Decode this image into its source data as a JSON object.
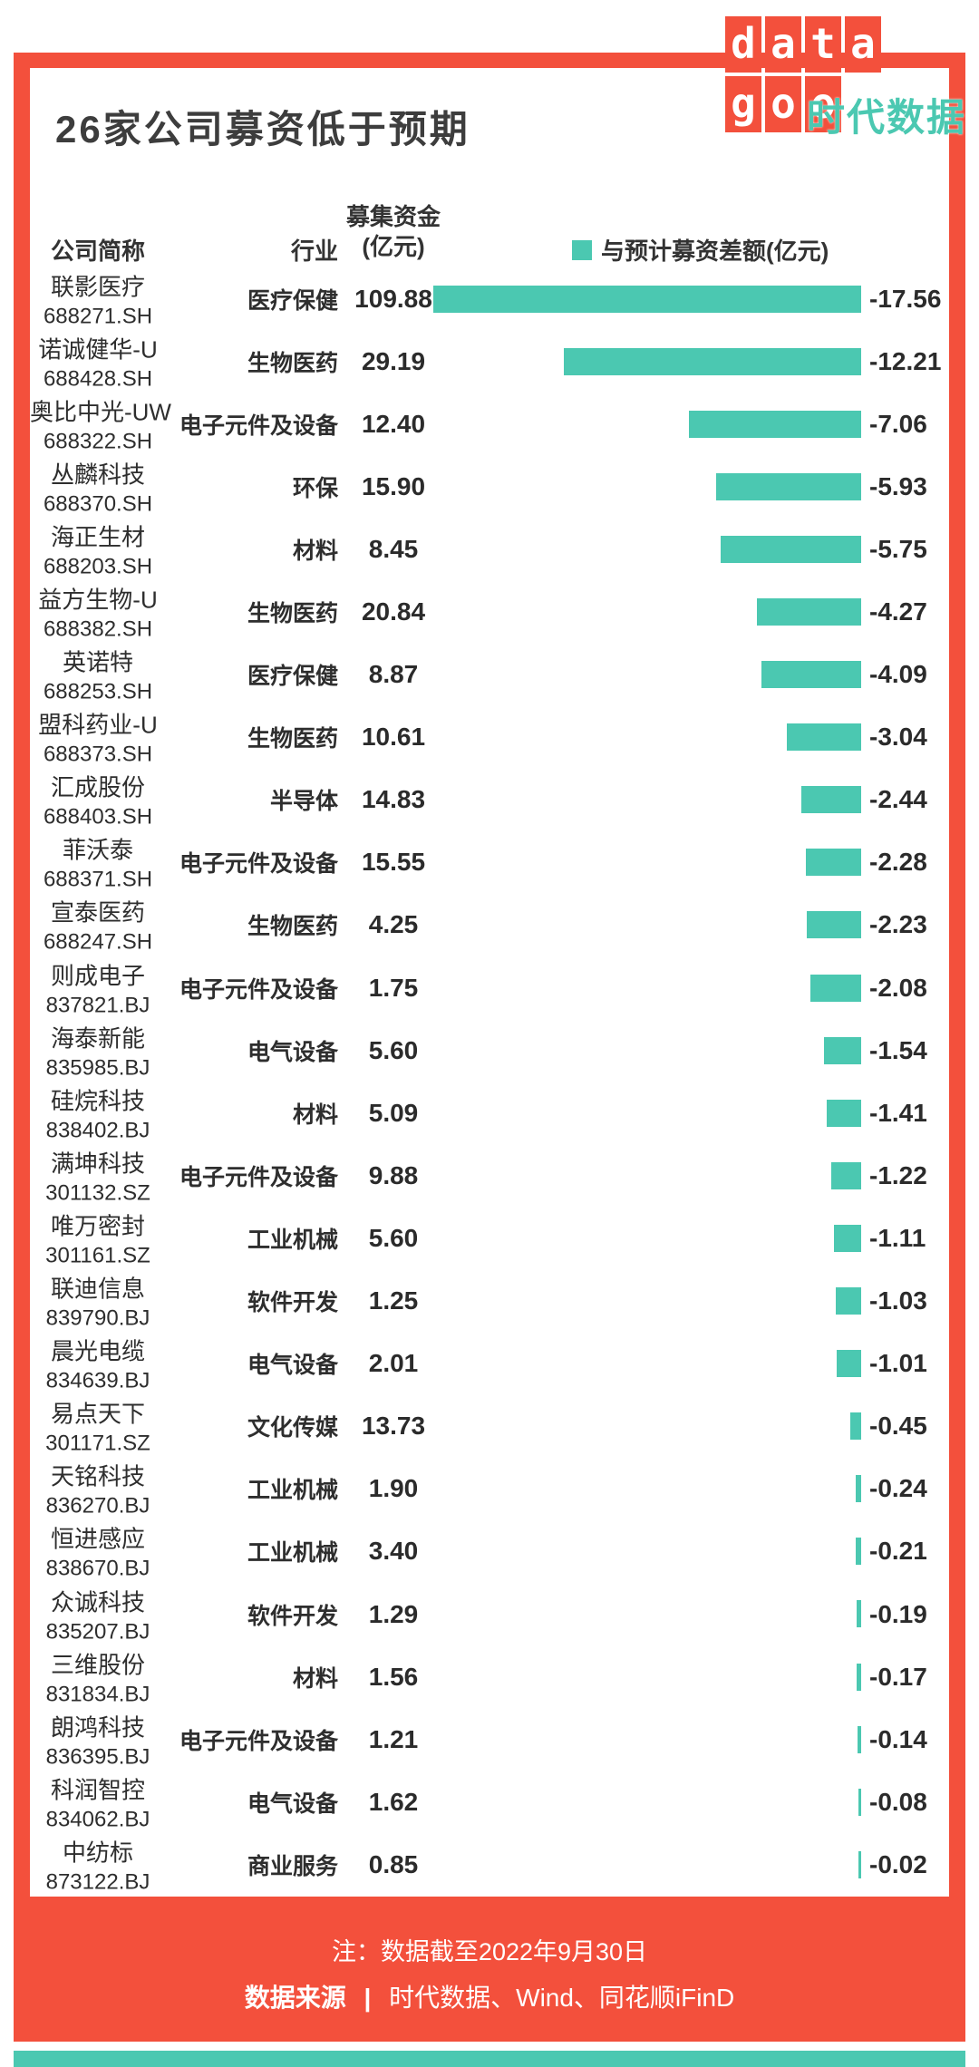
{
  "title": "26家公司募资低于预期",
  "logo": {
    "top": "data",
    "bottom": "goo",
    "brand": "时代数据"
  },
  "table": {
    "col_company": "公司简称",
    "col_industry": "行业",
    "col_funds_line1": "募集资金",
    "col_funds_line2": "(亿元)",
    "legend_label": "与预计募资差额(亿元)"
  },
  "footer": {
    "note_prefix": "注：",
    "note": "数据截至2022年9月30日",
    "source_label": "数据来源",
    "separator": "|",
    "source": "时代数据、Wind、同花顺iFinD"
  },
  "colors": {
    "accent_red": "#F3503C",
    "accent_teal": "#4BC8B1"
  },
  "chart_data": {
    "type": "bar",
    "orientation": "horizontal",
    "title": "26家公司募资低于预期",
    "legend": "与预计募资差额(亿元)",
    "value_unit": "亿元",
    "xlim": [
      -18,
      0
    ],
    "rows": [
      {
        "company": "联影医疗",
        "code": "688271.SH",
        "industry": "医疗保健",
        "funds": "109.88",
        "diff": -17.56,
        "diff_label": "-17.56"
      },
      {
        "company": "诺诚健华-U",
        "code": "688428.SH",
        "industry": "生物医药",
        "funds": "29.19",
        "diff": -12.21,
        "diff_label": "-12.21"
      },
      {
        "company": "奥比中光-UW",
        "code": "688322.SH",
        "industry": "电子元件及设备",
        "funds": "12.40",
        "diff": -7.06,
        "diff_label": "-7.06"
      },
      {
        "company": "丛麟科技",
        "code": "688370.SH",
        "industry": "环保",
        "funds": "15.90",
        "diff": -5.93,
        "diff_label": "-5.93"
      },
      {
        "company": "海正生材",
        "code": "688203.SH",
        "industry": "材料",
        "funds": "8.45",
        "diff": -5.75,
        "diff_label": "-5.75"
      },
      {
        "company": "益方生物-U",
        "code": "688382.SH",
        "industry": "生物医药",
        "funds": "20.84",
        "diff": -4.27,
        "diff_label": "-4.27"
      },
      {
        "company": "英诺特",
        "code": "688253.SH",
        "industry": "医疗保健",
        "funds": "8.87",
        "diff": -4.09,
        "diff_label": "-4.09"
      },
      {
        "company": "盟科药业-U",
        "code": "688373.SH",
        "industry": "生物医药",
        "funds": "10.61",
        "diff": -3.04,
        "diff_label": "-3.04"
      },
      {
        "company": "汇成股份",
        "code": "688403.SH",
        "industry": "半导体",
        "funds": "14.83",
        "diff": -2.44,
        "diff_label": "-2.44"
      },
      {
        "company": "菲沃泰",
        "code": "688371.SH",
        "industry": "电子元件及设备",
        "funds": "15.55",
        "diff": -2.28,
        "diff_label": "-2.28"
      },
      {
        "company": "宣泰医药",
        "code": "688247.SH",
        "industry": "生物医药",
        "funds": "4.25",
        "diff": -2.23,
        "diff_label": "-2.23"
      },
      {
        "company": "则成电子",
        "code": "837821.BJ",
        "industry": "电子元件及设备",
        "funds": "1.75",
        "diff": -2.08,
        "diff_label": "-2.08"
      },
      {
        "company": "海泰新能",
        "code": "835985.BJ",
        "industry": "电气设备",
        "funds": "5.60",
        "diff": -1.54,
        "diff_label": "-1.54"
      },
      {
        "company": "硅烷科技",
        "code": "838402.BJ",
        "industry": "材料",
        "funds": "5.09",
        "diff": -1.41,
        "diff_label": "-1.41"
      },
      {
        "company": "满坤科技",
        "code": "301132.SZ",
        "industry": "电子元件及设备",
        "funds": "9.88",
        "diff": -1.22,
        "diff_label": "-1.22"
      },
      {
        "company": "唯万密封",
        "code": "301161.SZ",
        "industry": "工业机械",
        "funds": "5.60",
        "diff": -1.11,
        "diff_label": "-1.11"
      },
      {
        "company": "联迪信息",
        "code": "839790.BJ",
        "industry": "软件开发",
        "funds": "1.25",
        "diff": -1.03,
        "diff_label": "-1.03"
      },
      {
        "company": "晨光电缆",
        "code": "834639.BJ",
        "industry": "电气设备",
        "funds": "2.01",
        "diff": -1.01,
        "diff_label": "-1.01"
      },
      {
        "company": "易点天下",
        "code": "301171.SZ",
        "industry": "文化传媒",
        "funds": "13.73",
        "diff": -0.45,
        "diff_label": "-0.45"
      },
      {
        "company": "天铭科技",
        "code": "836270.BJ",
        "industry": "工业机械",
        "funds": "1.90",
        "diff": -0.24,
        "diff_label": "-0.24"
      },
      {
        "company": "恒进感应",
        "code": "838670.BJ",
        "industry": "工业机械",
        "funds": "3.40",
        "diff": -0.21,
        "diff_label": "-0.21"
      },
      {
        "company": "众诚科技",
        "code": "835207.BJ",
        "industry": "软件开发",
        "funds": "1.29",
        "diff": -0.19,
        "diff_label": "-0.19"
      },
      {
        "company": "三维股份",
        "code": "831834.BJ",
        "industry": "材料",
        "funds": "1.56",
        "diff": -0.17,
        "diff_label": "-0.17"
      },
      {
        "company": "朗鸿科技",
        "code": "836395.BJ",
        "industry": "电子元件及设备",
        "funds": "1.21",
        "diff": -0.14,
        "diff_label": "-0.14"
      },
      {
        "company": "科润智控",
        "code": "834062.BJ",
        "industry": "电气设备",
        "funds": "1.62",
        "diff": -0.08,
        "diff_label": "-0.08"
      },
      {
        "company": "中纺标",
        "code": "873122.BJ",
        "industry": "商业服务",
        "funds": "0.85",
        "diff": -0.02,
        "diff_label": "-0.02"
      }
    ]
  }
}
